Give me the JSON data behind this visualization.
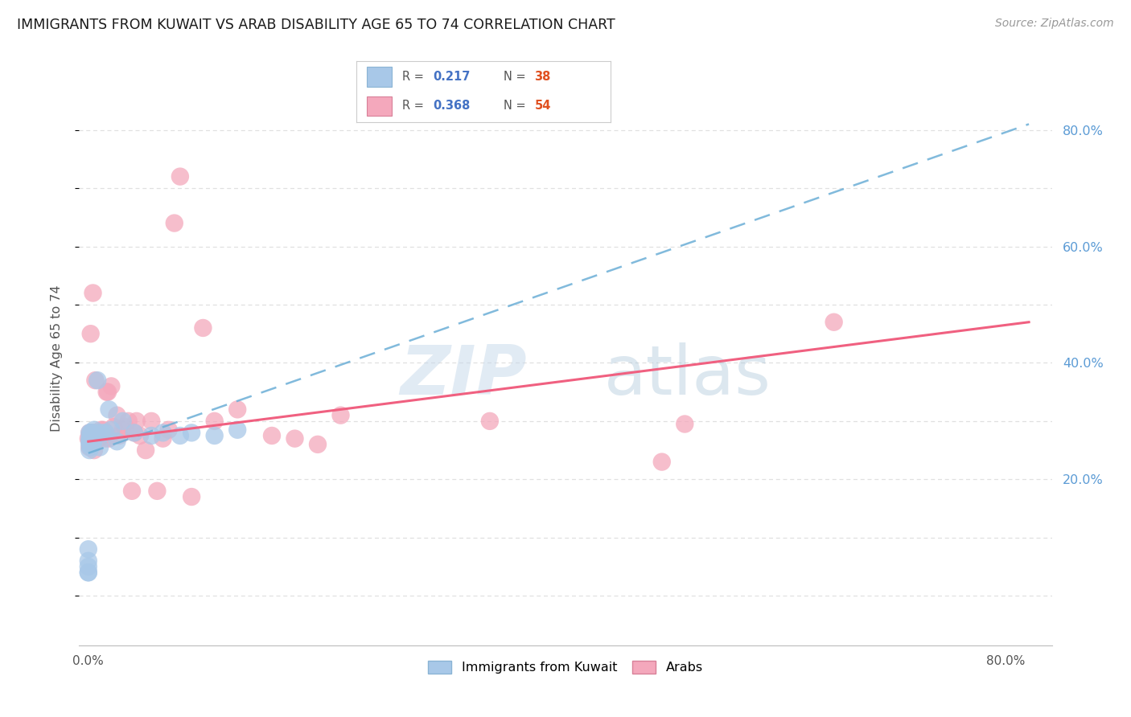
{
  "title": "IMMIGRANTS FROM KUWAIT VS ARAB DISABILITY AGE 65 TO 74 CORRELATION CHART",
  "source": "Source: ZipAtlas.com",
  "ylabel": "Disability Age 65 to 74",
  "legend_r1": "0.217",
  "legend_n1": "38",
  "legend_r2": "0.368",
  "legend_n2": "54",
  "legend_label1": "Immigrants from Kuwait",
  "legend_label2": "Arabs",
  "blue_scatter_color": "#a8c8e8",
  "pink_scatter_color": "#f4a8bc",
  "blue_line_color": "#6baed6",
  "pink_line_color": "#f06080",
  "r_value_color": "#4472c4",
  "n_value_color": "#e05020",
  "title_color": "#1a1a1a",
  "source_color": "#999999",
  "axis_color": "#aaaaaa",
  "right_tick_color": "#5b9bd5",
  "grid_color": "#e0e0e0",
  "background_color": "#ffffff",
  "xlim": [
    -0.008,
    0.84
  ],
  "ylim": [
    -0.085,
    0.9
  ],
  "x_ticks": [
    0.0,
    0.1,
    0.2,
    0.3,
    0.4,
    0.5,
    0.6,
    0.7,
    0.8
  ],
  "x_ticklabels": [
    "0.0%",
    "",
    "",
    "",
    "",
    "",
    "",
    "",
    "80.0%"
  ],
  "y_right_ticks": [
    0.0,
    0.1,
    0.2,
    0.3,
    0.4,
    0.5,
    0.6,
    0.7,
    0.8
  ],
  "y_right_ticklabels": [
    "",
    "",
    "20.0%",
    "",
    "40.0%",
    "",
    "60.0%",
    "",
    "80.0%"
  ],
  "kuwait_x": [
    0.0,
    0.0,
    0.0,
    0.0,
    0.0,
    0.001,
    0.001,
    0.001,
    0.001,
    0.001,
    0.002,
    0.002,
    0.002,
    0.002,
    0.003,
    0.003,
    0.003,
    0.004,
    0.004,
    0.005,
    0.005,
    0.006,
    0.007,
    0.008,
    0.01,
    0.012,
    0.015,
    0.018,
    0.02,
    0.025,
    0.03,
    0.04,
    0.055,
    0.065,
    0.08,
    0.09,
    0.11,
    0.13
  ],
  "kuwait_y": [
    0.08,
    0.06,
    0.05,
    0.04,
    0.04,
    0.28,
    0.27,
    0.265,
    0.26,
    0.25,
    0.28,
    0.275,
    0.27,
    0.255,
    0.28,
    0.275,
    0.265,
    0.27,
    0.26,
    0.285,
    0.27,
    0.275,
    0.28,
    0.37,
    0.255,
    0.28,
    0.28,
    0.32,
    0.285,
    0.265,
    0.3,
    0.28,
    0.275,
    0.28,
    0.275,
    0.28,
    0.275,
    0.285
  ],
  "arab_x": [
    0.0,
    0.001,
    0.001,
    0.002,
    0.002,
    0.003,
    0.003,
    0.004,
    0.004,
    0.005,
    0.006,
    0.006,
    0.007,
    0.007,
    0.008,
    0.009,
    0.01,
    0.011,
    0.012,
    0.013,
    0.015,
    0.016,
    0.017,
    0.018,
    0.02,
    0.022,
    0.025,
    0.027,
    0.03,
    0.032,
    0.035,
    0.038,
    0.04,
    0.042,
    0.045,
    0.05,
    0.055,
    0.06,
    0.065,
    0.07,
    0.075,
    0.08,
    0.09,
    0.1,
    0.11,
    0.13,
    0.16,
    0.18,
    0.2,
    0.22,
    0.35,
    0.5,
    0.65,
    0.52
  ],
  "arab_y": [
    0.27,
    0.255,
    0.28,
    0.27,
    0.45,
    0.27,
    0.28,
    0.52,
    0.28,
    0.25,
    0.37,
    0.275,
    0.27,
    0.28,
    0.27,
    0.27,
    0.275,
    0.285,
    0.275,
    0.285,
    0.27,
    0.35,
    0.35,
    0.27,
    0.36,
    0.29,
    0.31,
    0.275,
    0.285,
    0.29,
    0.3,
    0.18,
    0.28,
    0.3,
    0.275,
    0.25,
    0.3,
    0.18,
    0.27,
    0.285,
    0.64,
    0.72,
    0.17,
    0.46,
    0.3,
    0.32,
    0.275,
    0.27,
    0.26,
    0.31,
    0.3,
    0.23,
    0.47,
    0.295
  ],
  "blue_regline_x0": 0.0,
  "blue_regline_y0": 0.245,
  "blue_regline_x1": 0.82,
  "blue_regline_y1": 0.81,
  "pink_regline_x0": 0.0,
  "pink_regline_y0": 0.265,
  "pink_regline_x1": 0.82,
  "pink_regline_y1": 0.47
}
